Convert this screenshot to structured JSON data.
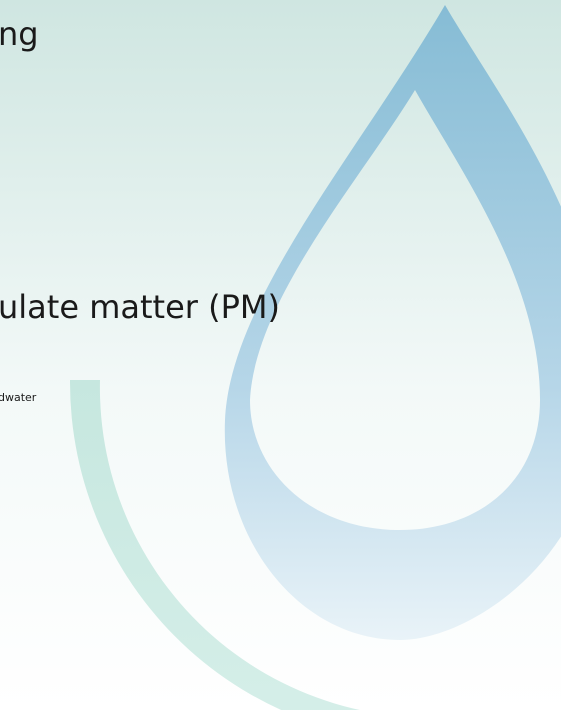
{
  "slide": {
    "heading": "ng",
    "subheading": "ulate matter (PM)",
    "note": "dwater"
  }
}
